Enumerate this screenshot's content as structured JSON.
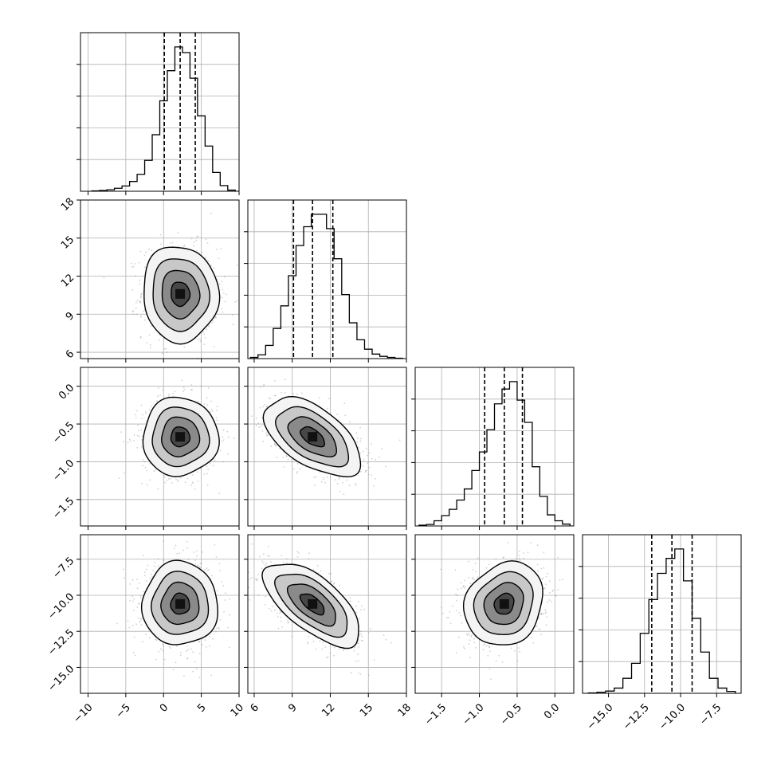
{
  "chart_data": {
    "type": "corner",
    "parameters": 4,
    "title": "",
    "grid": true,
    "quantiles": [
      0.16,
      0.5,
      0.84
    ],
    "colors": {
      "line": "#000000",
      "grid": "#b0b0b0",
      "hist2d_dark": "#000000",
      "points": "#9a9a9a"
    },
    "axes": [
      {
        "xlim": [
          -11,
          10
        ],
        "xticks": [
          -10,
          -5,
          0,
          5,
          10
        ],
        "xtick_labels": [
          "−10",
          "−5",
          "0",
          "5",
          "10"
        ]
      },
      {
        "xlim": [
          5.5,
          18
        ],
        "xticks": [
          6,
          9,
          12,
          15,
          18
        ],
        "xtick_labels": [
          "6",
          "9",
          "12",
          "15",
          "18"
        ],
        "ylim": [
          5.5,
          18
        ],
        "yticks": [
          6,
          9,
          12,
          15,
          18
        ],
        "ytick_labels": [
          "6",
          "9",
          "12",
          "15",
          "18"
        ]
      },
      {
        "xlim": [
          -1.85,
          0.25
        ],
        "xticks": [
          -1.5,
          -1.0,
          -0.5,
          0.0
        ],
        "xtick_labels": [
          "−1.5",
          "−1.0",
          "−0.5",
          "0.0"
        ],
        "ylim": [
          -1.85,
          0.25
        ],
        "yticks": [
          -1.5,
          -1.0,
          -0.5,
          0.0
        ],
        "ytick_labels": [
          "−1.5",
          "−1.0",
          "−0.5",
          "0.0"
        ]
      },
      {
        "xlim": [
          -16.8,
          -5.8
        ],
        "xticks": [
          -15,
          -12.5,
          -10,
          -7.5
        ],
        "xtick_labels": [
          "−15.0",
          "−12.5",
          "−10.0",
          "−7.5"
        ],
        "ylim": [
          -16.8,
          -5.8
        ],
        "yticks": [
          -15,
          -12.5,
          -10,
          -7.5
        ],
        "ytick_labels": [
          "−15.0",
          "−12.5",
          "−10.0",
          "−7.5"
        ]
      }
    ],
    "marginals": [
      {
        "param": 0,
        "bin_edges": [
          -9.5,
          -8.5,
          -7.5,
          -6.5,
          -5.5,
          -4.5,
          -3.5,
          -2.5,
          -1.5,
          -0.5,
          0.5,
          1.5,
          2.5,
          3.5,
          4.5,
          5.5,
          6.5,
          7.5,
          8.5,
          9.5
        ],
        "counts": [
          1,
          2,
          4,
          8,
          14,
          26,
          45,
          82,
          150,
          240,
          320,
          383,
          368,
          300,
          200,
          120,
          50,
          15,
          3
        ],
        "quantile_values": [
          0.1,
          2.2,
          4.2
        ]
      },
      {
        "param": 1,
        "bin_edges": [
          5.7,
          6.3,
          6.9,
          7.5,
          8.1,
          8.7,
          9.3,
          9.9,
          10.5,
          11.1,
          11.7,
          12.3,
          12.9,
          13.5,
          14.1,
          14.7,
          15.3,
          15.9,
          16.5,
          17.1,
          17.7
        ],
        "counts": [
          3,
          10,
          35,
          80,
          140,
          220,
          300,
          350,
          383,
          383,
          345,
          265,
          170,
          95,
          50,
          25,
          12,
          6,
          3,
          1
        ],
        "quantile_values": [
          9.1,
          10.6,
          12.2
        ]
      },
      {
        "param": 2,
        "bin_edges": [
          -1.8,
          -1.7,
          -1.6,
          -1.5,
          -1.4,
          -1.3,
          -1.2,
          -1.1,
          -1.0,
          -0.9,
          -0.8,
          -0.7,
          -0.6,
          -0.5,
          -0.4,
          -0.3,
          -0.2,
          -0.1,
          0.0,
          0.1,
          0.2
        ],
        "counts": [
          2,
          4,
          14,
          28,
          45,
          70,
          100,
          150,
          200,
          260,
          330,
          370,
          390,
          340,
          280,
          160,
          80,
          30,
          14,
          5
        ],
        "quantile_values": [
          -0.93,
          -0.67,
          -0.43
        ]
      },
      {
        "param": 3,
        "bin_edges": [
          -16.4,
          -15.8,
          -15.2,
          -14.6,
          -14.0,
          -13.4,
          -12.8,
          -12.2,
          -11.6,
          -11.0,
          -10.4,
          -9.8,
          -9.2,
          -8.6,
          -8.0,
          -7.4,
          -6.8,
          -6.2
        ],
        "counts": [
          1,
          3,
          6,
          14,
          40,
          80,
          160,
          250,
          320,
          360,
          385,
          300,
          200,
          110,
          40,
          14,
          5
        ],
        "quantile_values": [
          -12.0,
          -10.6,
          -9.2
        ]
      }
    ],
    "joints": [
      {
        "x_param": 0,
        "y_param": 1,
        "center": [
          2.2,
          10.6
        ],
        "sigma": [
          2.5,
          1.9
        ],
        "rho": -0.05
      },
      {
        "x_param": 0,
        "y_param": 2,
        "center": [
          2.2,
          -0.67
        ],
        "sigma": [
          2.5,
          0.26
        ],
        "rho": 0.0
      },
      {
        "x_param": 1,
        "y_param": 2,
        "center": [
          10.6,
          -0.67
        ],
        "sigma": [
          1.9,
          0.26
        ],
        "rho": -0.55
      },
      {
        "x_param": 0,
        "y_param": 3,
        "center": [
          2.2,
          -10.6
        ],
        "sigma": [
          2.5,
          1.45
        ],
        "rho": 0.0
      },
      {
        "x_param": 1,
        "y_param": 3,
        "center": [
          10.6,
          -10.6
        ],
        "sigma": [
          1.9,
          1.45
        ],
        "rho": -0.65
      },
      {
        "x_param": 2,
        "y_param": 3,
        "center": [
          -0.67,
          -10.6
        ],
        "sigma": [
          0.26,
          1.45
        ],
        "rho": 0.15
      }
    ],
    "contour_levels_sigma": [
      0.5,
      1.0,
      1.5,
      2.0
    ]
  }
}
